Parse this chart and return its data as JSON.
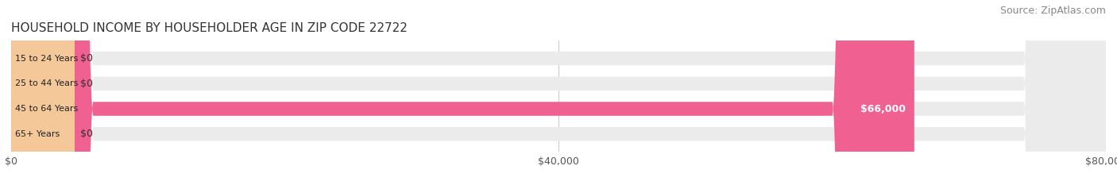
{
  "title": "HOUSEHOLD INCOME BY HOUSEHOLDER AGE IN ZIP CODE 22722",
  "source": "Source: ZipAtlas.com",
  "categories": [
    "15 to 24 Years",
    "25 to 44 Years",
    "45 to 64 Years",
    "65+ Years"
  ],
  "values": [
    0,
    0,
    66000,
    0
  ],
  "bar_colors": [
    "#7dd8d8",
    "#a0a0d8",
    "#f06090",
    "#f5c89a"
  ],
  "bar_bg_color": "#ebebeb",
  "xlim": [
    0,
    80000
  ],
  "xticks": [
    0,
    40000,
    80000
  ],
  "xtick_labels": [
    "$0",
    "$40,000",
    "$80,000"
  ],
  "value_labels": [
    "$0",
    "$0",
    "$66,000",
    "$0"
  ],
  "background_color": "#ffffff",
  "bar_height": 0.55,
  "title_fontsize": 11,
  "source_fontsize": 9,
  "tick_fontsize": 9,
  "label_fontsize": 8,
  "value_fontsize": 9
}
